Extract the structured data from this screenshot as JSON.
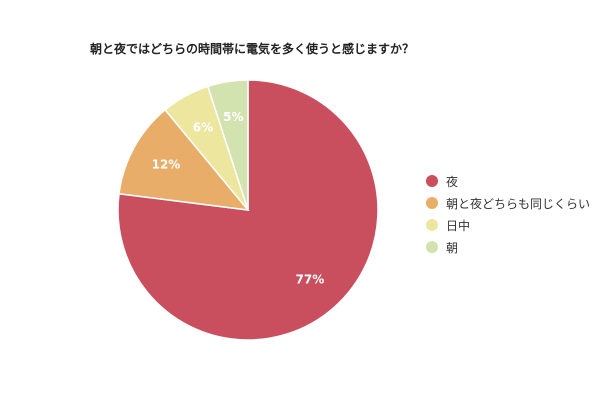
{
  "chart_data": {
    "type": "pie",
    "title": "朝と夜ではどちらの時間帯に電気を多く使うと感じますか？",
    "categories": [
      "夜",
      "朝と夜どちらも同じくらい",
      "日中",
      "朝"
    ],
    "values": [
      77,
      12,
      6,
      5
    ],
    "labels": [
      "77%",
      "12%",
      "6%",
      "5%"
    ],
    "colors": [
      "#c94f5e",
      "#e8ad69",
      "#ede69f",
      "#d3e3b0"
    ],
    "legend_position": "right"
  }
}
